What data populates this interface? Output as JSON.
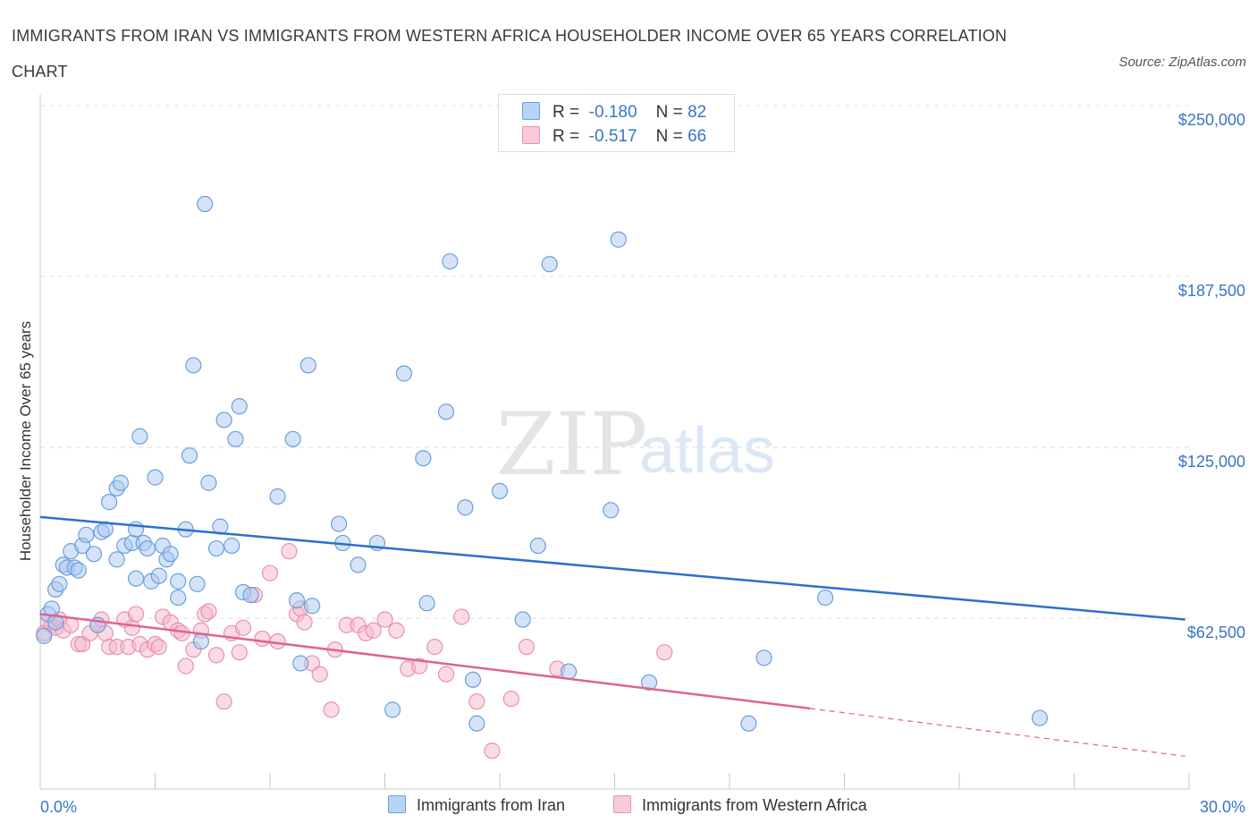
{
  "title": "IMMIGRANTS FROM IRAN VS IMMIGRANTS FROM WESTERN AFRICA HOUSEHOLDER INCOME OVER 65 YEARS CORRELATION CHART",
  "source": "Source: ZipAtlas.com",
  "watermark": {
    "zip": "ZIP",
    "atlas": "atlas"
  },
  "legend": {
    "rows": [
      {
        "r_label": "R =",
        "r_value": "-0.180",
        "n_label": "N =",
        "n_value": "82"
      },
      {
        "r_label": "R =",
        "r_value": "-0.517",
        "n_label": "N =",
        "n_value": "66"
      }
    ]
  },
  "bottom_legend": {
    "iran": "Immigrants from Iran",
    "wafrica": "Immigrants from Western Africa"
  },
  "colors": {
    "iran_fill": "#a9c8f0",
    "iran_stroke": "#6b9fdc",
    "iran_line": "#2d6fcf",
    "wafrica_fill": "#f5b7cb",
    "wafrica_stroke": "#e891ae",
    "wafrica_line": "#e0638f",
    "tick_text": "#3a74c8",
    "grid": "#dddddd"
  },
  "chart_data": {
    "type": "scatter",
    "title": "IMMIGRANTS FROM IRAN VS IMMIGRANTS FROM WESTERN AFRICA HOUSEHOLDER INCOME OVER 65 YEARS CORRELATION CHART",
    "xlabel": "",
    "ylabel": "Householder Income Over 65 years",
    "xlim": [
      0,
      30
    ],
    "ylim": [
      0,
      250000
    ],
    "x_tick_labels": [
      "0.0%",
      "30.0%"
    ],
    "y_ticks": [
      62500,
      125000,
      187500,
      250000
    ],
    "y_tick_labels": [
      "$62,500",
      "$125,000",
      "$187,500",
      "$250,000"
    ],
    "grid": true,
    "legend_position": "top-center",
    "series": [
      {
        "name": "Immigrants from Iran",
        "trend": {
          "x": [
            0,
            29.9
          ],
          "y": [
            99500,
            62000
          ]
        },
        "points": [
          [
            0.1,
            56000
          ],
          [
            0.2,
            64000
          ],
          [
            0.3,
            66000
          ],
          [
            0.4,
            61000
          ],
          [
            0.4,
            73000
          ],
          [
            0.5,
            75000
          ],
          [
            0.6,
            82000
          ],
          [
            0.7,
            81000
          ],
          [
            0.8,
            87000
          ],
          [
            0.9,
            81000
          ],
          [
            1.0,
            80000
          ],
          [
            1.1,
            89000
          ],
          [
            1.2,
            93000
          ],
          [
            1.4,
            86000
          ],
          [
            1.5,
            60000
          ],
          [
            1.6,
            94000
          ],
          [
            1.7,
            95000
          ],
          [
            1.8,
            105000
          ],
          [
            2.0,
            84000
          ],
          [
            2.0,
            110000
          ],
          [
            2.1,
            112000
          ],
          [
            2.2,
            89000
          ],
          [
            2.4,
            90000
          ],
          [
            2.5,
            95000
          ],
          [
            2.5,
            77000
          ],
          [
            2.6,
            129000
          ],
          [
            2.7,
            90000
          ],
          [
            2.8,
            88000
          ],
          [
            2.9,
            76000
          ],
          [
            3.0,
            114000
          ],
          [
            3.1,
            78000
          ],
          [
            3.2,
            89000
          ],
          [
            3.3,
            84000
          ],
          [
            3.4,
            86000
          ],
          [
            3.6,
            76000
          ],
          [
            3.6,
            70000
          ],
          [
            3.8,
            95000
          ],
          [
            3.9,
            122000
          ],
          [
            4.0,
            155000
          ],
          [
            4.1,
            75000
          ],
          [
            4.2,
            54000
          ],
          [
            4.3,
            214000
          ],
          [
            4.4,
            112000
          ],
          [
            4.6,
            88000
          ],
          [
            4.7,
            96000
          ],
          [
            4.8,
            135000
          ],
          [
            5.0,
            89000
          ],
          [
            5.1,
            128000
          ],
          [
            5.2,
            140000
          ],
          [
            5.3,
            72000
          ],
          [
            5.5,
            71000
          ],
          [
            6.2,
            107000
          ],
          [
            6.6,
            128000
          ],
          [
            6.7,
            69000
          ],
          [
            6.8,
            46000
          ],
          [
            7.0,
            155000
          ],
          [
            7.1,
            67000
          ],
          [
            7.8,
            97000
          ],
          [
            7.9,
            90000
          ],
          [
            8.3,
            82000
          ],
          [
            8.8,
            90000
          ],
          [
            9.2,
            29000
          ],
          [
            9.5,
            152000
          ],
          [
            10.0,
            121000
          ],
          [
            10.1,
            68000
          ],
          [
            10.6,
            138000
          ],
          [
            10.7,
            193000
          ],
          [
            11.1,
            103000
          ],
          [
            11.3,
            40000
          ],
          [
            11.4,
            24000
          ],
          [
            12.0,
            109000
          ],
          [
            12.6,
            62000
          ],
          [
            13.0,
            89000
          ],
          [
            13.3,
            192000
          ],
          [
            13.8,
            43000
          ],
          [
            14.9,
            102000
          ],
          [
            15.1,
            201000
          ],
          [
            15.9,
            39000
          ],
          [
            18.5,
            24000
          ],
          [
            18.9,
            48000
          ],
          [
            20.5,
            70000
          ],
          [
            26.1,
            26000
          ]
        ]
      },
      {
        "name": "Immigrants from Western Africa",
        "trend": {
          "x": [
            0,
            20.1
          ],
          "y": [
            64000,
            29500
          ]
        },
        "trend_extension": {
          "x": [
            20.1,
            29.9
          ],
          "y": [
            29500,
            12000
          ]
        },
        "points": [
          [
            0.1,
            57000
          ],
          [
            0.2,
            61000
          ],
          [
            0.3,
            60000
          ],
          [
            0.4,
            59000
          ],
          [
            0.5,
            62000
          ],
          [
            0.6,
            58000
          ],
          [
            0.8,
            60000
          ],
          [
            1.0,
            53000
          ],
          [
            1.1,
            53000
          ],
          [
            1.3,
            57000
          ],
          [
            1.5,
            60000
          ],
          [
            1.6,
            62000
          ],
          [
            1.7,
            57000
          ],
          [
            1.8,
            52000
          ],
          [
            2.0,
            52000
          ],
          [
            2.2,
            62000
          ],
          [
            2.3,
            52000
          ],
          [
            2.4,
            59000
          ],
          [
            2.5,
            64000
          ],
          [
            2.6,
            53000
          ],
          [
            2.8,
            51000
          ],
          [
            3.0,
            53000
          ],
          [
            3.1,
            52000
          ],
          [
            3.2,
            63000
          ],
          [
            3.4,
            61000
          ],
          [
            3.6,
            58000
          ],
          [
            3.7,
            57000
          ],
          [
            3.8,
            45000
          ],
          [
            4.0,
            51000
          ],
          [
            4.2,
            58000
          ],
          [
            4.3,
            64000
          ],
          [
            4.4,
            65000
          ],
          [
            4.6,
            49000
          ],
          [
            4.8,
            32000
          ],
          [
            5.0,
            57000
          ],
          [
            5.2,
            50000
          ],
          [
            5.3,
            59000
          ],
          [
            5.6,
            71000
          ],
          [
            5.8,
            55000
          ],
          [
            6.0,
            79000
          ],
          [
            6.2,
            54000
          ],
          [
            6.5,
            87000
          ],
          [
            6.7,
            64000
          ],
          [
            6.8,
            66000
          ],
          [
            6.9,
            61000
          ],
          [
            7.1,
            46000
          ],
          [
            7.3,
            42000
          ],
          [
            7.6,
            29000
          ],
          [
            7.7,
            51000
          ],
          [
            8.0,
            60000
          ],
          [
            8.3,
            60000
          ],
          [
            8.5,
            57000
          ],
          [
            8.7,
            58000
          ],
          [
            9.0,
            62000
          ],
          [
            9.3,
            58000
          ],
          [
            9.6,
            44000
          ],
          [
            9.9,
            45000
          ],
          [
            10.3,
            52000
          ],
          [
            10.6,
            42000
          ],
          [
            11.0,
            63000
          ],
          [
            11.4,
            32000
          ],
          [
            11.8,
            14000
          ],
          [
            12.3,
            33000
          ],
          [
            12.7,
            52000
          ],
          [
            13.5,
            44000
          ],
          [
            16.3,
            50000
          ]
        ]
      }
    ]
  }
}
